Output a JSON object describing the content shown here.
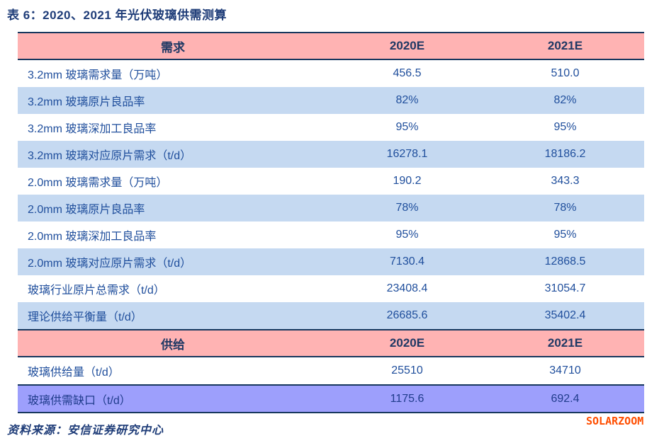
{
  "title": "表 6：2020、2021 年光伏玻璃供需测算",
  "table": {
    "demand_header": {
      "section": "需求",
      "col_2020": "2020E",
      "col_2021": "2021E"
    },
    "supply_header": {
      "section": "供给",
      "col_2020": "2020E",
      "col_2021": "2021E"
    },
    "demand_rows": [
      {
        "label": "3.2mm 玻璃需求量（万吨）",
        "v2020": "456.5",
        "v2021": "510.0"
      },
      {
        "label": "3.2mm 玻璃原片良品率",
        "v2020": "82%",
        "v2021": "82%"
      },
      {
        "label": "3.2mm 玻璃深加工良品率",
        "v2020": "95%",
        "v2021": "95%"
      },
      {
        "label": "3.2mm 玻璃对应原片需求（t/d）",
        "v2020": "16278.1",
        "v2021": "18186.2"
      },
      {
        "label": "2.0mm 玻璃需求量（万吨）",
        "v2020": "190.2",
        "v2021": "343.3"
      },
      {
        "label": "2.0mm 玻璃原片良品率",
        "v2020": "78%",
        "v2021": "78%"
      },
      {
        "label": "2.0mm 玻璃深加工良品率",
        "v2020": "95%",
        "v2021": "95%"
      },
      {
        "label": "2.0mm 玻璃对应原片需求（t/d）",
        "v2020": "7130.4",
        "v2021": "12868.5"
      },
      {
        "label": "玻璃行业原片总需求（t/d）",
        "v2020": "23408.4",
        "v2021": "31054.7"
      },
      {
        "label": "理论供给平衡量（t/d）",
        "v2020": "26685.6",
        "v2021": "35402.4"
      }
    ],
    "supply_rows": [
      {
        "label": "玻璃供给量（t/d）",
        "v2020": "25510",
        "v2021": "34710"
      },
      {
        "label": "玻璃供需缺口（t/d）",
        "v2020": "1175.6",
        "v2021": "692.4"
      }
    ]
  },
  "footer": {
    "source": "资料来源：安信证券研究中心"
  },
  "watermark": "SOLARZOOM",
  "colors": {
    "header_bg": "#FFB3B3",
    "stripe_blue_bg": "#C5D9F1",
    "gap_row_bg": "#9D9FFC",
    "border_navy": "#17375E",
    "text_blue": "#1F4E9C",
    "title_navy": "#1E3C78",
    "watermark_orange": "#FF4E00"
  }
}
